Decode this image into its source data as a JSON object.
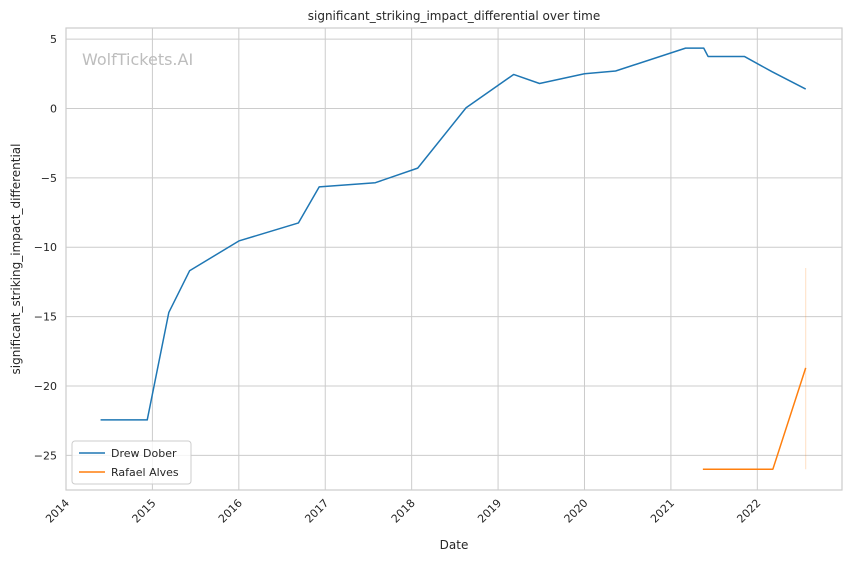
{
  "chart_data": {
    "type": "line",
    "title": "significant_striking_impact_differential over time",
    "xlabel": "Date",
    "ylabel": "significant_striking_impact_differential",
    "xlim": [
      2014.0,
      2022.98
    ],
    "ylim": [
      -27.5,
      5.8
    ],
    "xticks": [
      2014,
      2015,
      2016,
      2017,
      2018,
      2019,
      2020,
      2021,
      2022
    ],
    "xtick_labels": [
      "2014",
      "2015",
      "2016",
      "2017",
      "2018",
      "2019",
      "2020",
      "2021",
      "2022"
    ],
    "yticks": [
      5,
      0,
      -5,
      -10,
      -15,
      -20,
      -25
    ],
    "ytick_labels": [
      "5",
      "0",
      "−5",
      "−10",
      "−15",
      "−20",
      "−25"
    ],
    "grid": true,
    "legend_position": "lower-left",
    "watermark": "WolfTickets.AI",
    "series": [
      {
        "name": "Drew Dober",
        "color": "#1f77b4",
        "x": [
          2014.4,
          2014.94,
          2015.19,
          2015.43,
          2016.0,
          2016.69,
          2016.93,
          2017.58,
          2018.07,
          2018.63,
          2019.18,
          2019.48,
          2020.0,
          2020.36,
          2021.17,
          2021.38,
          2021.43,
          2021.85,
          2022.17,
          2022.56
        ],
        "y": [
          -22.45,
          -22.45,
          -14.7,
          -11.7,
          -9.55,
          -8.25,
          -5.65,
          -5.35,
          -4.3,
          0.05,
          2.45,
          1.8,
          2.5,
          2.7,
          4.35,
          4.35,
          3.75,
          3.75,
          2.65,
          1.4
        ]
      },
      {
        "name": "Rafael Alves",
        "color": "#ff7f0e",
        "x": [
          2021.37,
          2022.18,
          2022.56
        ],
        "y": [
          -26.0,
          -26.0,
          -18.7
        ],
        "error_band": {
          "x": 2022.56,
          "low": -26.0,
          "high": -11.5
        }
      }
    ]
  }
}
